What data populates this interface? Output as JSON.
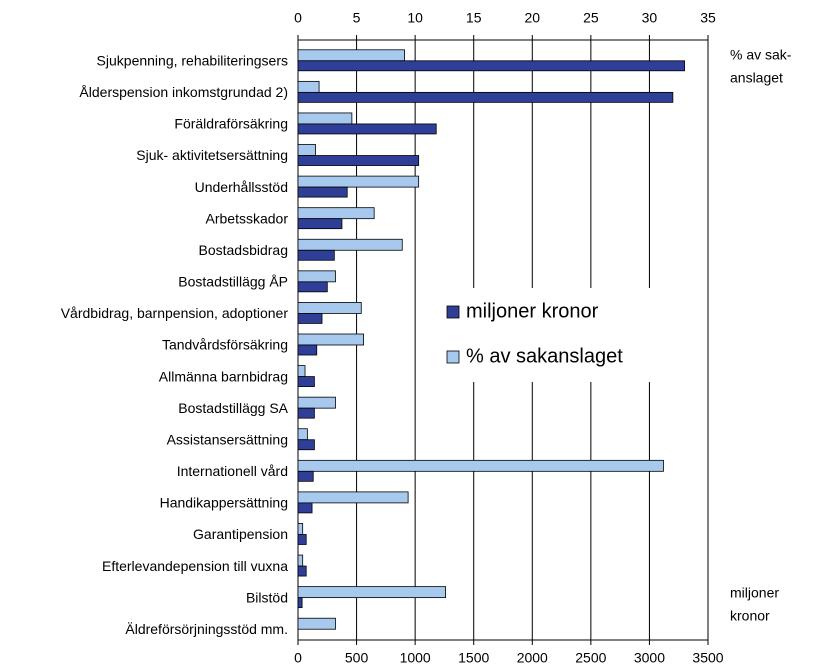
{
  "chart_data": {
    "type": "hbar",
    "categories": [
      "Sjukpenning, rehabiliteringsers",
      "Ålderspension inkomstgrundad 2)",
      "Föräldraförsäkring",
      "Sjuk- aktivitetsersättning",
      "Underhållsstöd",
      "Arbetsskador",
      "Bostadsbidrag",
      "Bostadstillägg ÅP",
      "Vårdbidrag, barnpension, adoptioner",
      "Tandvårdsförsäkring",
      "Allmänna barnbidrag",
      "Bostadstillägg SA",
      "Assistansersättning",
      "Internationell vård",
      "Handikappersättning",
      "Garantipension",
      "Efterlevandepension till vuxna",
      "Bilstöd",
      "Äldreförsörjningsstöd mm."
    ],
    "series": [
      {
        "name": "miljoner kronor",
        "color": "#2f3f98",
        "axis": "x",
        "values": [
          3300,
          3200,
          1180,
          1030,
          420,
          375,
          310,
          250,
          205,
          160,
          140,
          140,
          140,
          130,
          120,
          70,
          70,
          35,
          0
        ]
      },
      {
        "name": "% av sakanslaget",
        "color": "#a8c9ee",
        "axis": "x2",
        "values": [
          9.1,
          1.8,
          4.6,
          1.5,
          10.3,
          6.5,
          8.9,
          3.2,
          5.4,
          5.6,
          0.6,
          3.2,
          0.8,
          31.2,
          9.4,
          0.4,
          0.4,
          12.6,
          3.2
        ]
      }
    ],
    "xlim": [
      0,
      3500
    ],
    "xticks": [
      0,
      500,
      1000,
      1500,
      2000,
      2500,
      3000,
      3500
    ],
    "x2lim": [
      0,
      35
    ],
    "x2ticks": [
      0,
      5,
      10,
      15,
      20,
      25,
      30,
      35
    ],
    "x2_axis_label": [
      "% av sak-",
      "anslaget"
    ],
    "x_axis_label": [
      "miljoner",
      "kronor"
    ],
    "grid": true
  }
}
